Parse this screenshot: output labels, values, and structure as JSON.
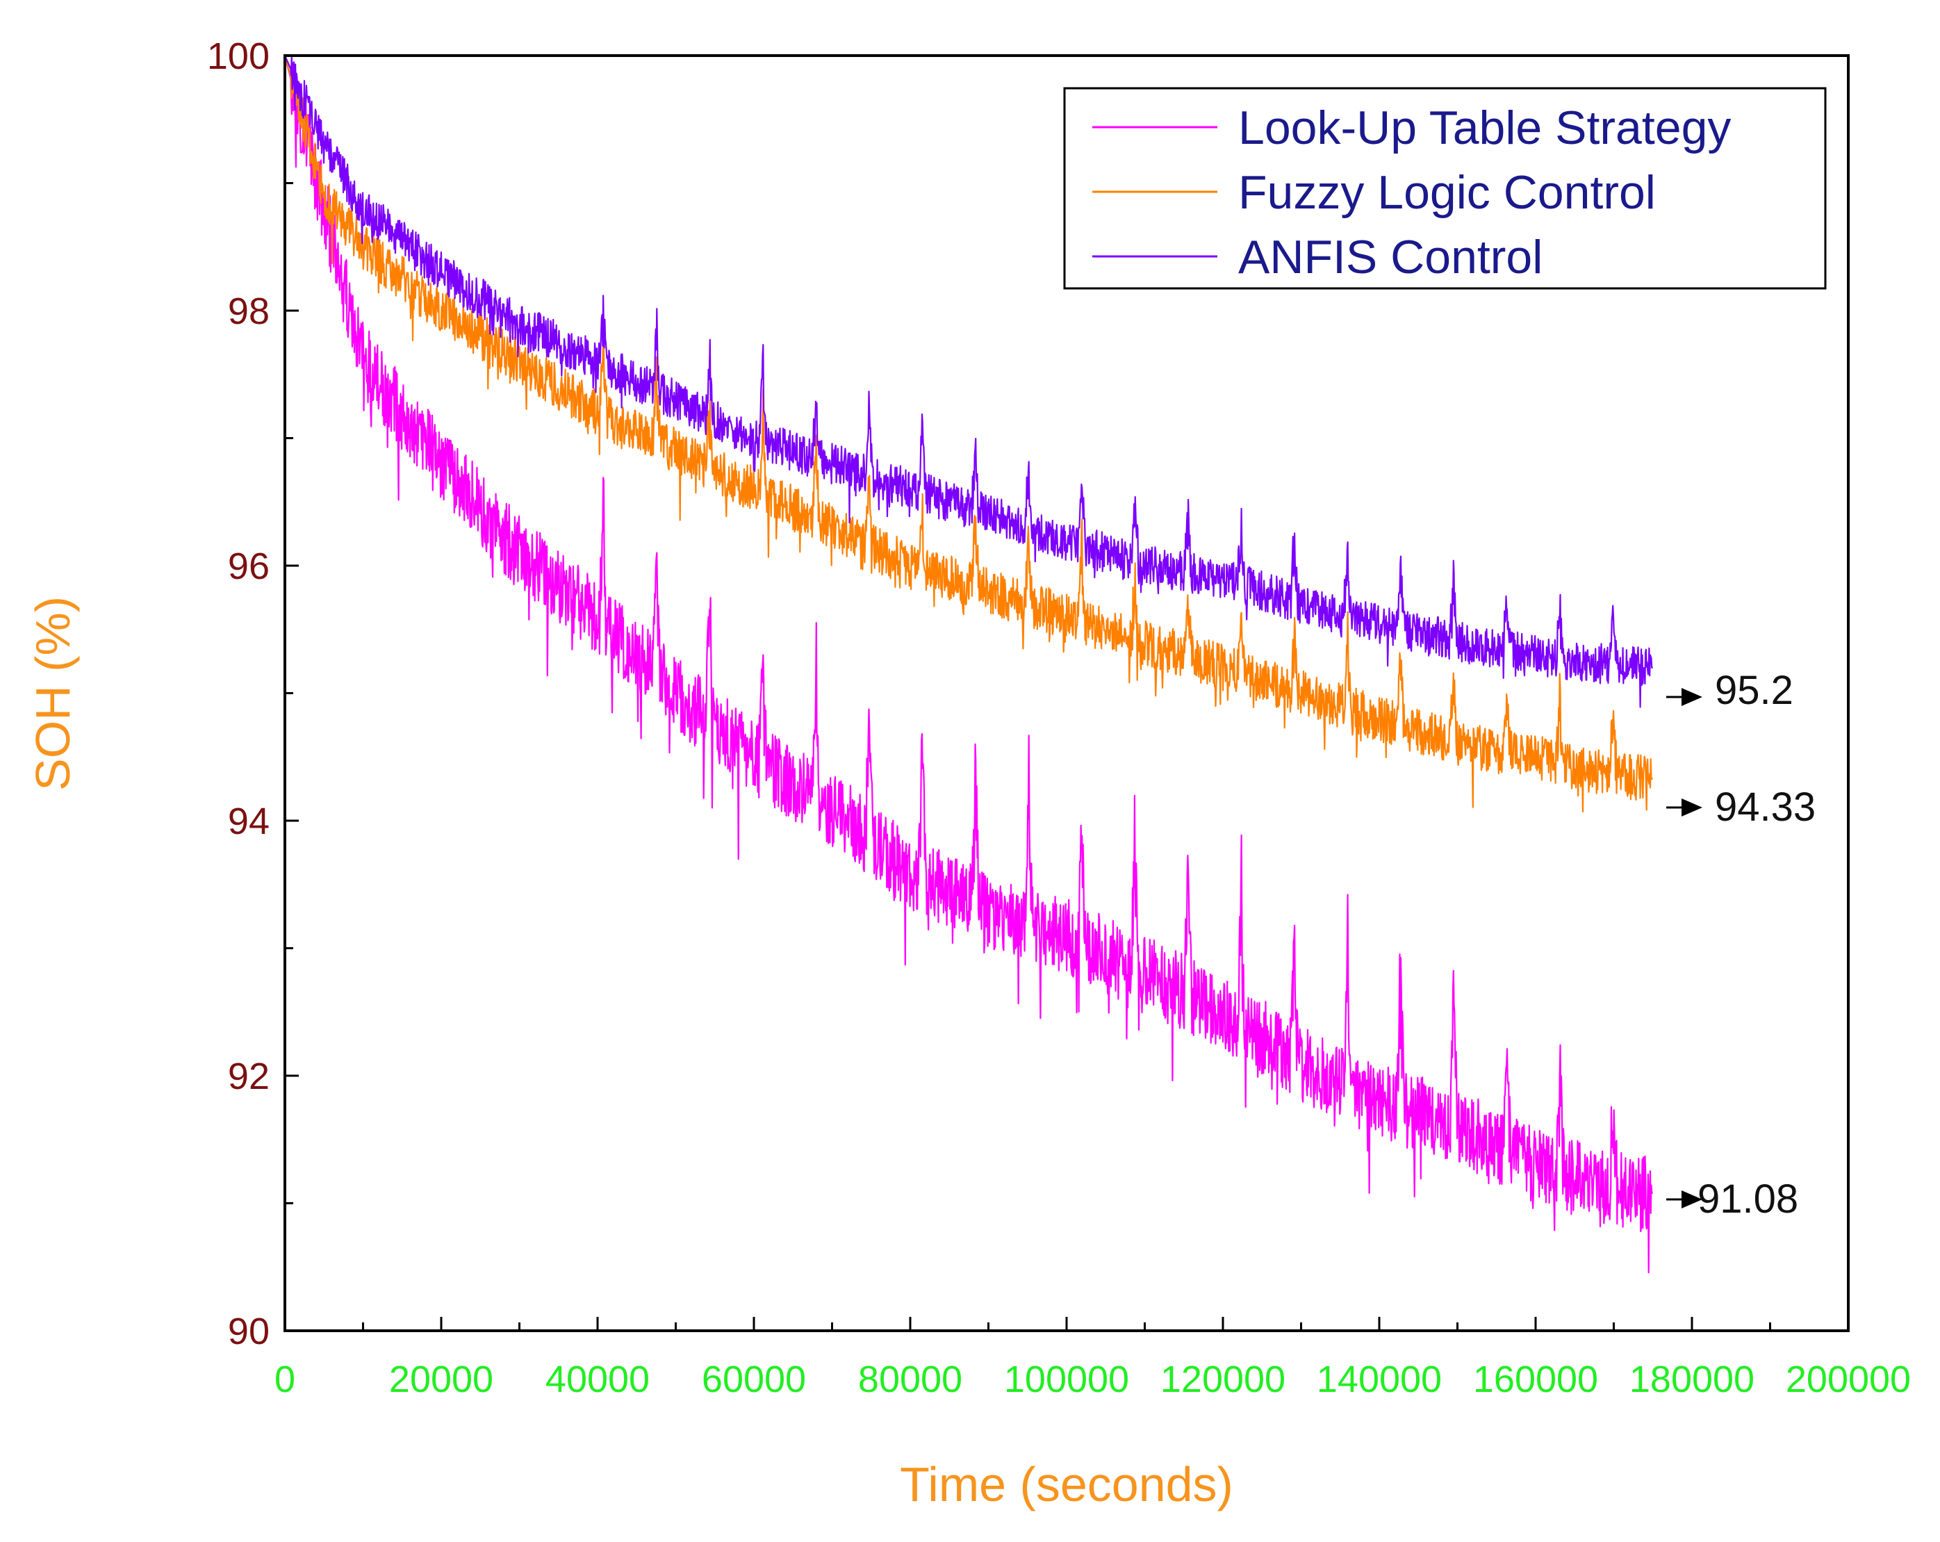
{
  "chart_data": {
    "type": "line",
    "xlabel": "Time (seconds)",
    "ylabel": "SOH (%)",
    "xlim": [
      0,
      200000
    ],
    "ylim": [
      90,
      100
    ],
    "xticks": [
      0,
      20000,
      40000,
      60000,
      80000,
      100000,
      120000,
      140000,
      160000,
      180000,
      200000
    ],
    "xtick_labels": [
      "0",
      "20000",
      "40000",
      "60000",
      "80000",
      "100000",
      "120000",
      "140000",
      "160000",
      "180000",
      "200000"
    ],
    "yticks": [
      90,
      92,
      94,
      96,
      98,
      100
    ],
    "ytick_labels": [
      "90",
      "92",
      "94",
      "96",
      "98",
      "100"
    ],
    "grid": false,
    "legend_position": "top-right",
    "colors": {
      "axis_title": "#F7941D",
      "ytick": "#7B1010",
      "xtick": "#22EE22",
      "legend_text": "#1A1A8C"
    },
    "series": [
      {
        "name": "Look-Up Table Strategy",
        "color": "#FF00FF",
        "x": [
          0,
          5000,
          10000,
          20000,
          30000,
          40000,
          50000,
          60000,
          70000,
          80000,
          90000,
          100000,
          110000,
          120000,
          130000,
          140000,
          150000,
          160000,
          170000,
          175000
        ],
        "values": [
          100,
          98.8,
          97.6,
          96.8,
          96.1,
          95.6,
          95.0,
          94.5,
          94.1,
          93.6,
          93.3,
          93.1,
          92.8,
          92.5,
          92.1,
          91.8,
          91.6,
          91.3,
          91.1,
          91.08
        ],
        "end_label": "91.08"
      },
      {
        "name": "Fuzzy Logic Control",
        "color": "#FF8000",
        "x": [
          0,
          5000,
          10000,
          20000,
          30000,
          40000,
          50000,
          60000,
          70000,
          80000,
          90000,
          100000,
          110000,
          120000,
          130000,
          140000,
          150000,
          160000,
          170000,
          175000
        ],
        "values": [
          100,
          98.9,
          98.5,
          98.0,
          97.6,
          97.2,
          96.9,
          96.6,
          96.3,
          96.0,
          95.8,
          95.6,
          95.4,
          95.2,
          95.0,
          94.8,
          94.6,
          94.5,
          94.35,
          94.33
        ],
        "end_label": "94.33"
      },
      {
        "name": "ANFIS Control",
        "color": "#7B00FF",
        "x": [
          0,
          5000,
          10000,
          20000,
          30000,
          40000,
          50000,
          60000,
          70000,
          80000,
          90000,
          100000,
          110000,
          120000,
          130000,
          140000,
          150000,
          160000,
          170000,
          175000
        ],
        "values": [
          100,
          99.3,
          98.8,
          98.3,
          97.9,
          97.6,
          97.3,
          97.0,
          96.8,
          96.6,
          96.4,
          96.2,
          96.0,
          95.9,
          95.7,
          95.55,
          95.4,
          95.3,
          95.22,
          95.2
        ],
        "end_label": "95.2"
      }
    ]
  }
}
